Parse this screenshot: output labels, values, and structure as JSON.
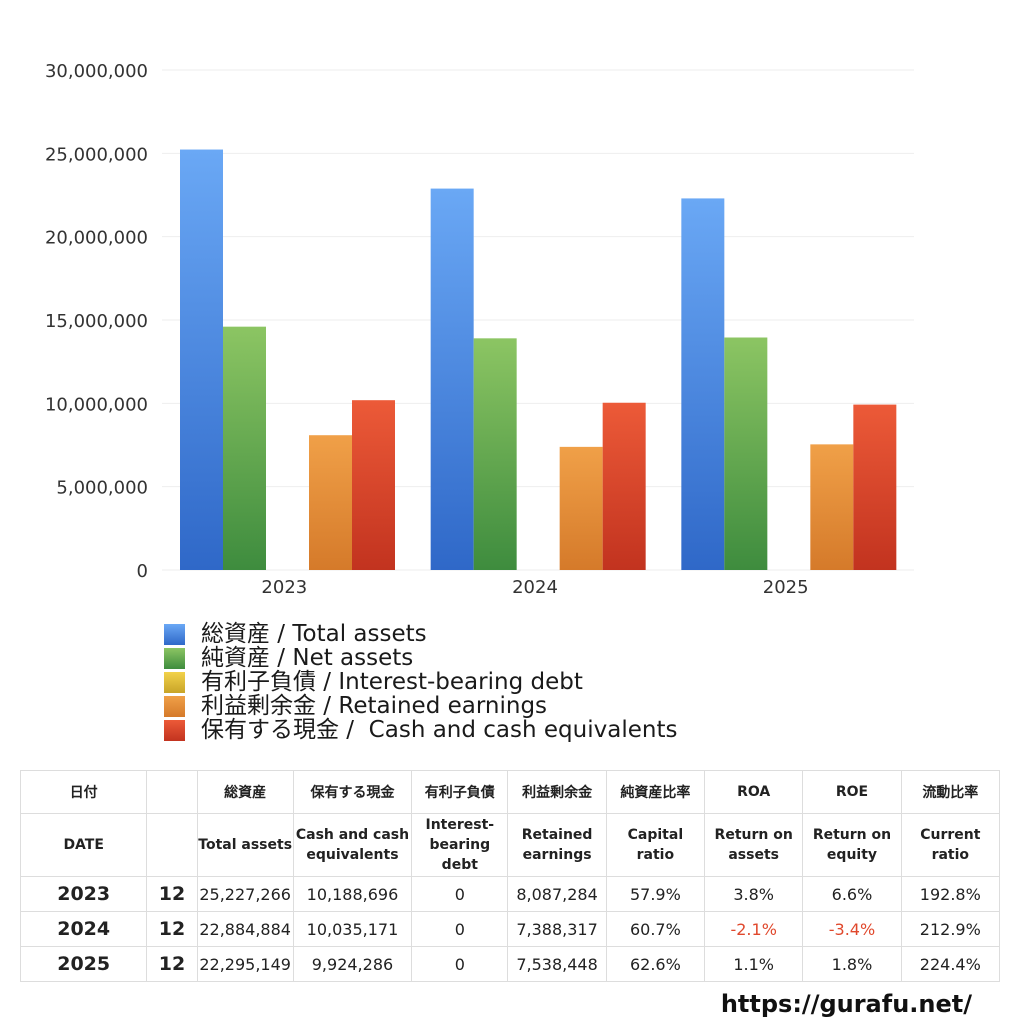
{
  "chart_data": {
    "type": "bar",
    "categories": [
      "2023",
      "2024",
      "2025"
    ],
    "ylim": [
      0,
      30000000
    ],
    "yticks": [
      0,
      5000000,
      10000000,
      15000000,
      20000000,
      25000000,
      30000000
    ],
    "ytick_labels": [
      "0",
      "5,000,000",
      "10,000,000",
      "15,000,000",
      "20,000,000",
      "25,000,000",
      "30,000,000"
    ],
    "grid": true,
    "legend_position": "bottom",
    "series": [
      {
        "name": "総資産 / Total assets",
        "values": [
          25227266,
          22884884,
          22295149
        ],
        "color_top": "#6aa8f5",
        "color_bottom": "#2f68c8"
      },
      {
        "name": "純資産 / Net assets",
        "values": [
          14600000,
          13900000,
          13950000
        ],
        "color_top": "#8cc563",
        "color_bottom": "#3e8c3e"
      },
      {
        "name": "有利子負債 / Interest-bearing debt",
        "values": [
          0,
          0,
          0
        ],
        "color_top": "#f2d24a",
        "color_bottom": "#c8a428"
      },
      {
        "name": "利益剰余金 / Retained earnings",
        "values": [
          8087284,
          7388317,
          7538448
        ],
        "color_top": "#f0a048",
        "color_bottom": "#d57a2a"
      },
      {
        "name": "保有する現金 /  Cash and cash equivalents",
        "values": [
          10188696,
          10035171,
          9924286
        ],
        "color_top": "#ec5a38",
        "color_bottom": "#c2331f"
      }
    ]
  },
  "table": {
    "headers_jp": [
      "日付",
      "",
      "総資産",
      "保有する現金",
      "有利子負債",
      "利益剰余金",
      "純資産比率",
      "ROA",
      "ROE",
      "流動比率"
    ],
    "headers_en": [
      "DATE",
      "",
      "Total assets",
      "Cash and cash equivalents",
      "Interest-bearing debt",
      "Retained earnings",
      "Capital ratio",
      "Return on assets",
      "Return on equity",
      "Current ratio"
    ],
    "rows": [
      {
        "year": "2023",
        "month": "12",
        "total_assets": "25,227,266",
        "cash": "10,188,696",
        "debt": "0",
        "retained": "8,087,284",
        "capital_ratio": "57.9%",
        "roa": "3.8%",
        "roe": "6.6%",
        "current_ratio": "192.8%",
        "roa_negative": false,
        "roe_negative": false
      },
      {
        "year": "2024",
        "month": "12",
        "total_assets": "22,884,884",
        "cash": "10,035,171",
        "debt": "0",
        "retained": "7,388,317",
        "capital_ratio": "60.7%",
        "roa": "-2.1%",
        "roe": "-3.4%",
        "current_ratio": "212.9%",
        "roa_negative": true,
        "roe_negative": true
      },
      {
        "year": "2025",
        "month": "12",
        "total_assets": "22,295,149",
        "cash": "9,924,286",
        "debt": "0",
        "retained": "7,538,448",
        "capital_ratio": "62.6%",
        "roa": "1.1%",
        "roe": "1.8%",
        "current_ratio": "224.4%",
        "roa_negative": false,
        "roe_negative": false
      }
    ]
  },
  "watermark": "https://gurafu.net/",
  "colors": {
    "negative": "#e0482c",
    "grid": "#eeeeee",
    "border": "#dddddd"
  }
}
